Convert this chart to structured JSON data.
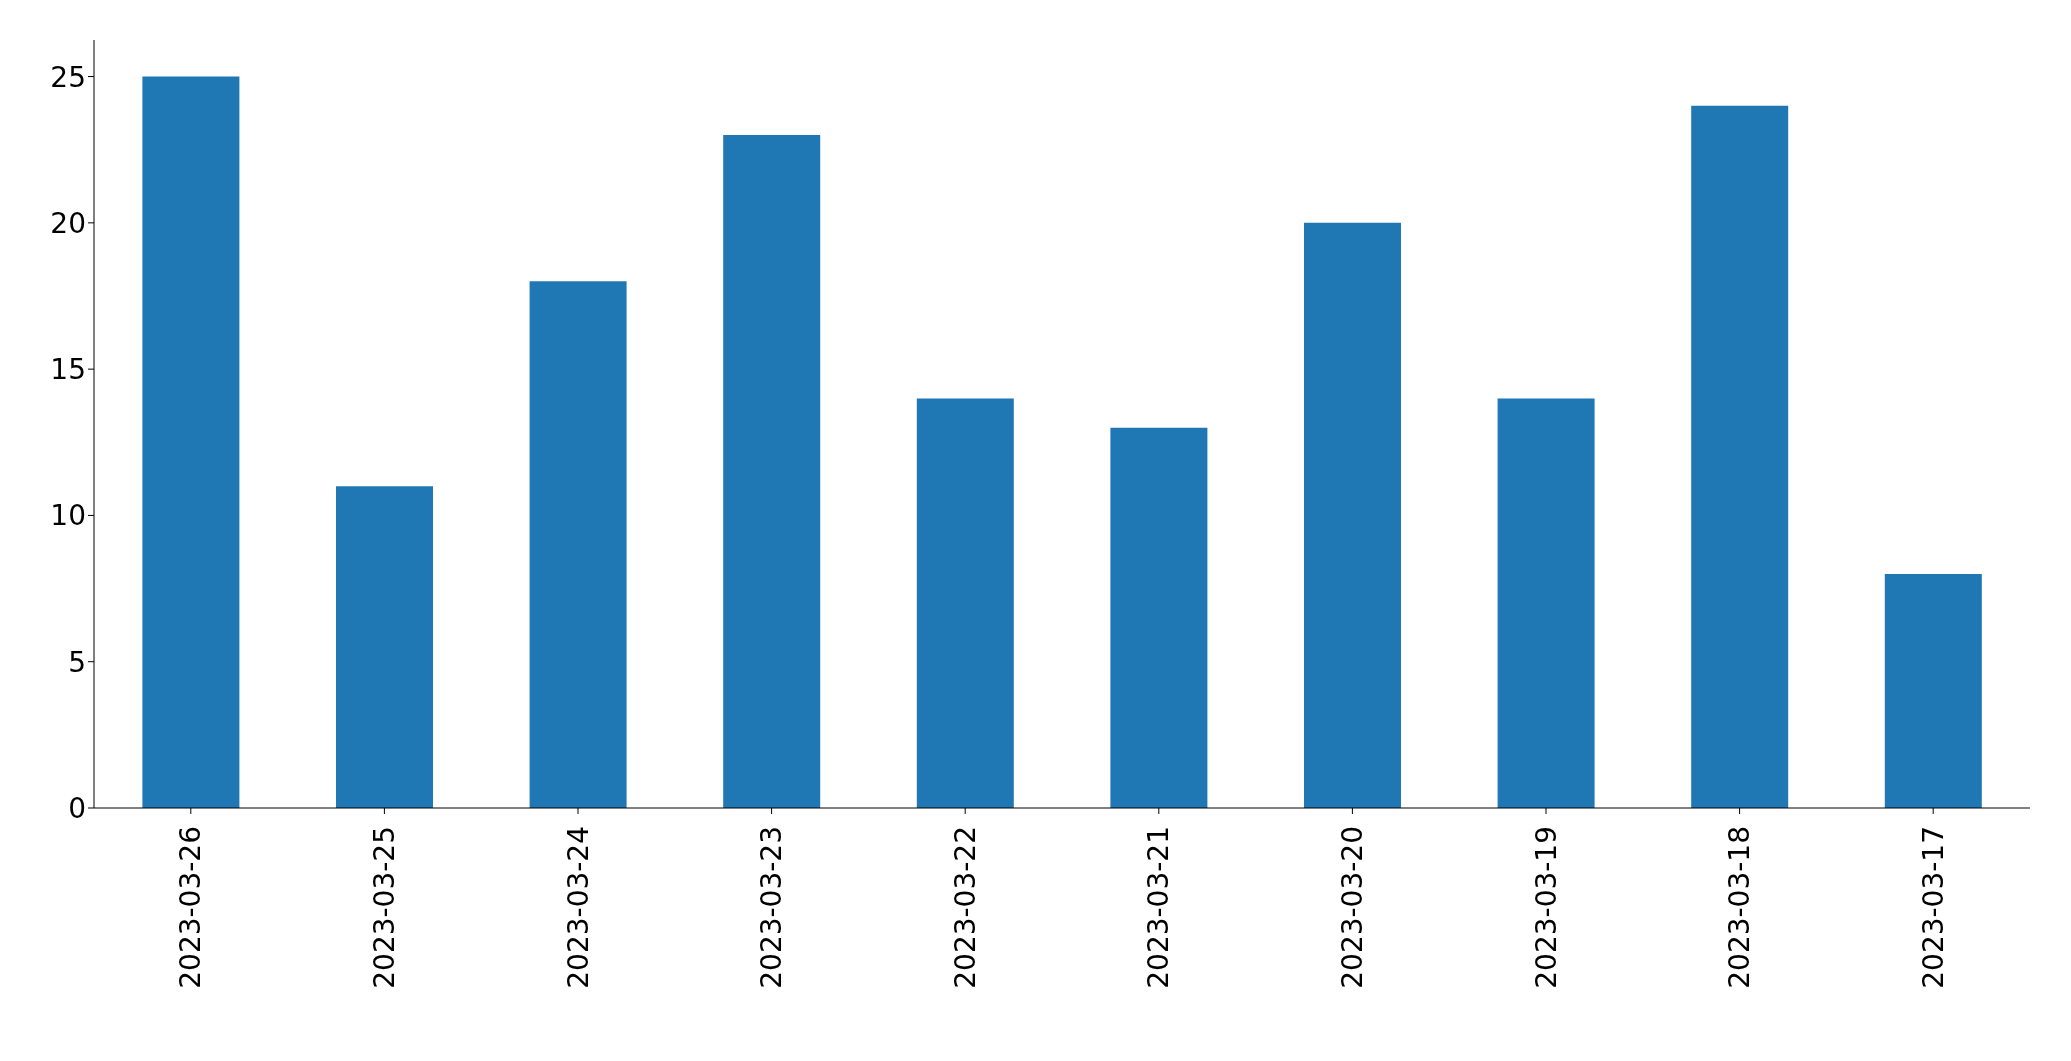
{
  "chart_data": {
    "type": "bar",
    "categories": [
      "2023-03-26",
      "2023-03-25",
      "2023-03-24",
      "2023-03-23",
      "2023-03-22",
      "2023-03-21",
      "2023-03-20",
      "2023-03-19",
      "2023-03-18",
      "2023-03-17"
    ],
    "values": [
      25,
      11,
      18,
      23,
      14,
      13,
      20,
      14,
      24,
      8
    ],
    "color": "#1f77b4",
    "ylim": [
      0,
      26.25
    ],
    "yticks": [
      0,
      5,
      10,
      15,
      20,
      25
    ]
  }
}
